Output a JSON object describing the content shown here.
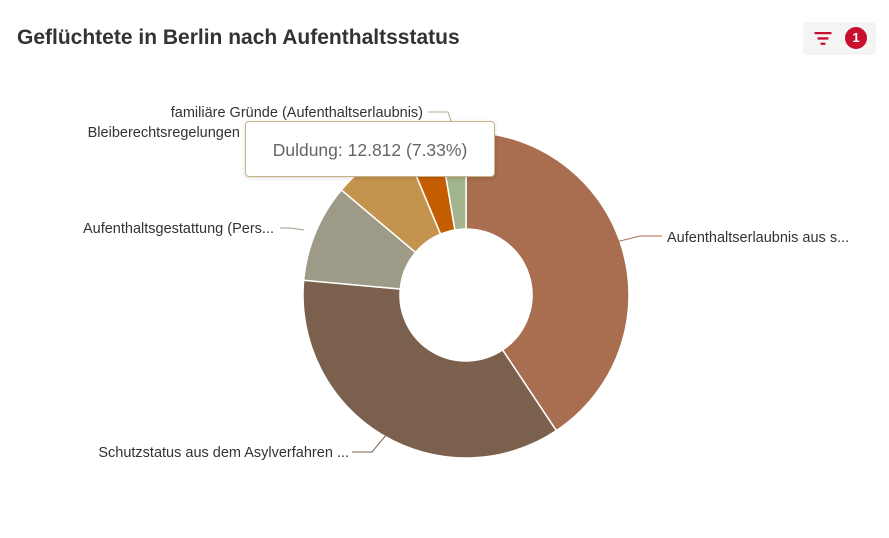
{
  "header": {
    "title": "Geflüchtete in Berlin nach Aufenthaltsstatus",
    "filter_count": "1",
    "filter_icon": "filter-icon",
    "accent_color": "#c8102e"
  },
  "tooltip": {
    "text": "Duldung: 12.812 (7.33%)"
  },
  "chart_data": {
    "type": "pie",
    "donut": true,
    "title": "Geflüchtete in Berlin nach Aufenthaltsstatus",
    "legend": "none",
    "slices": [
      {
        "label": "Aufenthaltserlaubnis aus s...",
        "percent": 39.4,
        "color": "#a86e4f"
      },
      {
        "label": "Schutzstatus aus dem Asylverfahren ...",
        "percent": 34.7,
        "color": "#7b604d"
      },
      {
        "label": "Aufenthaltsgestattung (Pers...",
        "percent": 9.4,
        "color": "#9d9b87"
      },
      {
        "label": "Duldung",
        "value": "12.812",
        "percent": 7.33,
        "color": "#c4944f"
      },
      {
        "label": "Bleiberechtsregelungen",
        "percent": 3.5,
        "color": "#c35d00"
      },
      {
        "label": "familiäre Gründe (Aufenthaltserlaubnis)",
        "percent": 2.6,
        "color": "#a2b48d"
      }
    ]
  }
}
